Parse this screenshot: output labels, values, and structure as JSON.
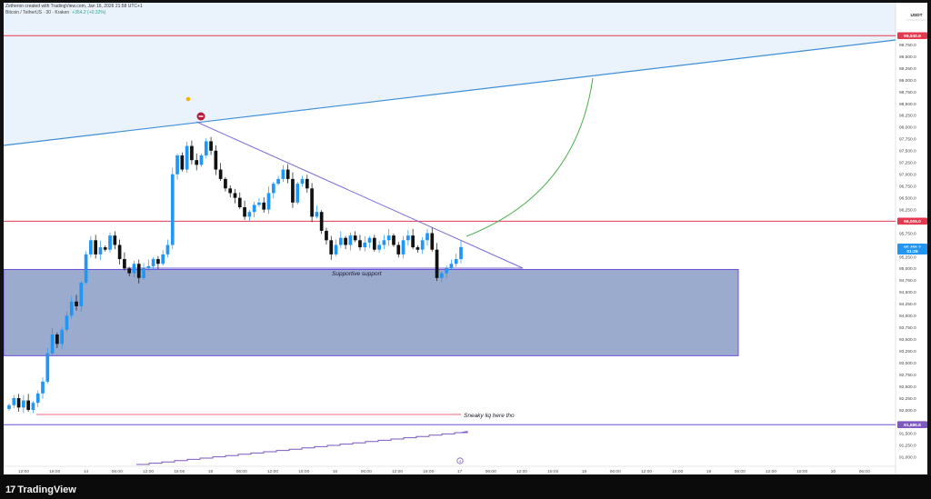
{
  "header": {
    "author_line": "Zetheron created with TradingView.com, Jan 16, 2026 21:58 UTC+1",
    "symbol_line": "Bitcoin / TetherUS · 30 · Kraken",
    "change": "+354.2 (+0.32%)"
  },
  "price_axis": {
    "currency": "USDT",
    "ticks": [
      "99,750.0",
      "99,500.0",
      "99,250.0",
      "99,000.0",
      "98,750.0",
      "98,500.0",
      "98,250.0",
      "98,000.0",
      "97,750.0",
      "97,500.0",
      "97,250.0",
      "97,000.0",
      "96,750.0",
      "96,500.0",
      "96,250.0",
      "95,750.0",
      "95,500.0",
      "95,250.0",
      "95,000.0",
      "94,750.0",
      "94,500.0",
      "94,250.0",
      "94,000.0",
      "93,750.0",
      "93,500.0",
      "93,250.0",
      "93,000.0",
      "92,750.0",
      "92,500.0",
      "92,250.0",
      "92,000.0",
      "91,500.0",
      "91,250.0",
      "91,000.0"
    ],
    "labels": [
      {
        "text": "99,940.9",
        "value": 99940.9,
        "color": "#e53950"
      },
      {
        "text": "96,005.0",
        "value": 96005,
        "color": "#e53950"
      },
      {
        "text": "BTCUSDT",
        "value": 95440,
        "color": "#2196f3"
      },
      {
        "text": "95,456.2",
        "value": 95456.2,
        "color": "#2196f3"
      },
      {
        "text": "01:26",
        "value": 95370,
        "color": "#2196f3"
      },
      {
        "text": "91,686.8",
        "value": 91686.8,
        "color": "#7e57c2"
      }
    ]
  },
  "time_axis": {
    "labels": [
      "12:00",
      "18:00",
      "14",
      "06:00",
      "12:00",
      "18:00",
      "15",
      "06:00",
      "12:00",
      "18:00",
      "16",
      "06:00",
      "12:00",
      "18:00",
      "17",
      "06:00",
      "12:00",
      "18:00",
      "18",
      "06:00",
      "12:00",
      "18:00",
      "19",
      "06:00",
      "12:00",
      "18:00",
      "20",
      "06:00"
    ]
  },
  "annotations": {
    "support_label": "Supportive support",
    "liq_label": "Sneaky liq here tho",
    "event_marker": "4"
  },
  "colors": {
    "up": "#2196f3",
    "down": "#111111",
    "resistance": "#e53950",
    "zone_fill": "#8a9cc6",
    "zone_border": "#6a4fd6",
    "trendline_blue": "#3d8fd9",
    "triangle": "#7b6bd6",
    "arc": "#4caf50"
  },
  "footer": {
    "brand": "TradingView"
  },
  "chart_data": {
    "type": "candlestick",
    "title": "Bitcoin / TetherUS · 30 · Kraken",
    "ylim": [
      90900,
      100100
    ],
    "horizontal_levels": [
      {
        "value": 99940.9,
        "label": "99,940.9"
      },
      {
        "value": 96005.0,
        "label": "96,005.0"
      },
      {
        "value": 91686.8,
        "label": "91,686.8"
      }
    ],
    "zones": [
      {
        "from": 93150,
        "to": 94980,
        "label": "Supportive support"
      }
    ],
    "series": [
      {
        "name": "BTCUSDT",
        "last": 95456.2,
        "closes": [
          92100,
          92250,
          92050,
          92200,
          92000,
          92150,
          92350,
          92600,
          93200,
          93600,
          93400,
          93700,
          94000,
          94300,
          94200,
          94700,
          95300,
          95600,
          95300,
          95450,
          95400,
          95700,
          95500,
          95200,
          95000,
          94900,
          95100,
          94800,
          95000,
          95050,
          95200,
          95100,
          95300,
          95500,
          97000,
          97400,
          97100,
          97600,
          97300,
          97200,
          97400,
          97700,
          97500,
          97100,
          96900,
          96700,
          96600,
          96500,
          96300,
          96100,
          96200,
          96350,
          96400,
          96250,
          96600,
          96800,
          96900,
          97100,
          96900,
          96400,
          96800,
          96900,
          96700,
          96100,
          96200,
          95800,
          95600,
          95300,
          95500,
          95650,
          95500,
          95700,
          95600,
          95450,
          95550,
          95650,
          95400,
          95500,
          95600,
          95700,
          95500,
          95300,
          95600,
          95700,
          95450,
          95400,
          95600,
          95750,
          95400,
          94800,
          94900,
          95000,
          95100,
          95200,
          95456
        ]
      }
    ]
  }
}
